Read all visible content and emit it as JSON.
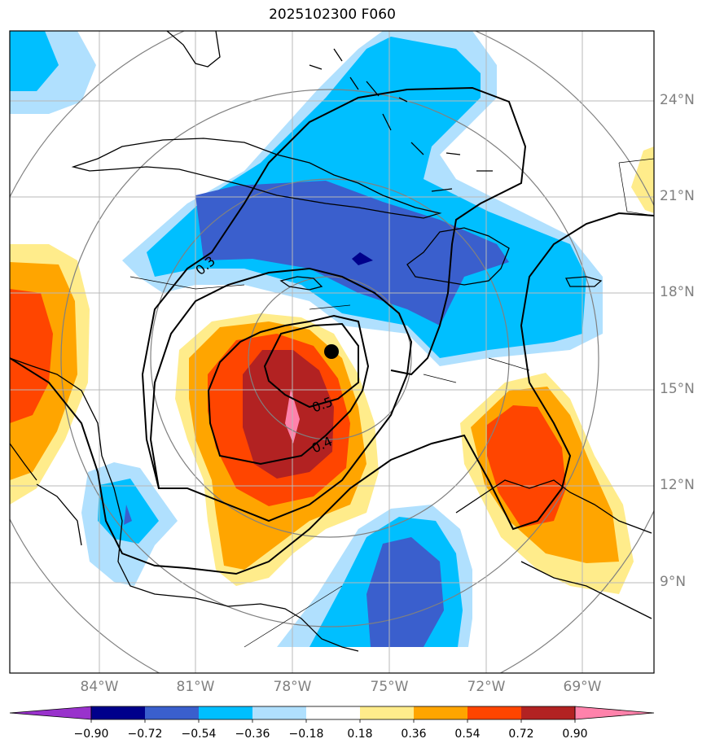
{
  "title": "2025102300 F060",
  "map": {
    "latitude_labels": [
      "24°N",
      "21°N",
      "18°N",
      "15°N",
      "12°N",
      "9°N"
    ],
    "longitude_labels": [
      "84°W",
      "81°W",
      "78°W",
      "75°W",
      "72°W",
      "69°W"
    ],
    "contour_labels": [
      "0.3",
      "0.5",
      "0.4"
    ],
    "center_marker": "storm-center-dot"
  },
  "colorbar": {
    "ticks": [
      "−0.90",
      "−0.72",
      "−0.54",
      "−0.36",
      "−0.18",
      "0.18",
      "0.36",
      "0.54",
      "0.72",
      "0.90"
    ],
    "colors": [
      "#9932cc",
      "#00008b",
      "#3a5fcd",
      "#00bfff",
      "#b0e0fe",
      "#ffffff",
      "#ffec8b",
      "#ffa500",
      "#ff4500",
      "#b22222",
      "#ff82ab"
    ]
  },
  "colors": {
    "grid": "#a0a0a0",
    "coast": "#000000",
    "range_rings": "#808080"
  }
}
